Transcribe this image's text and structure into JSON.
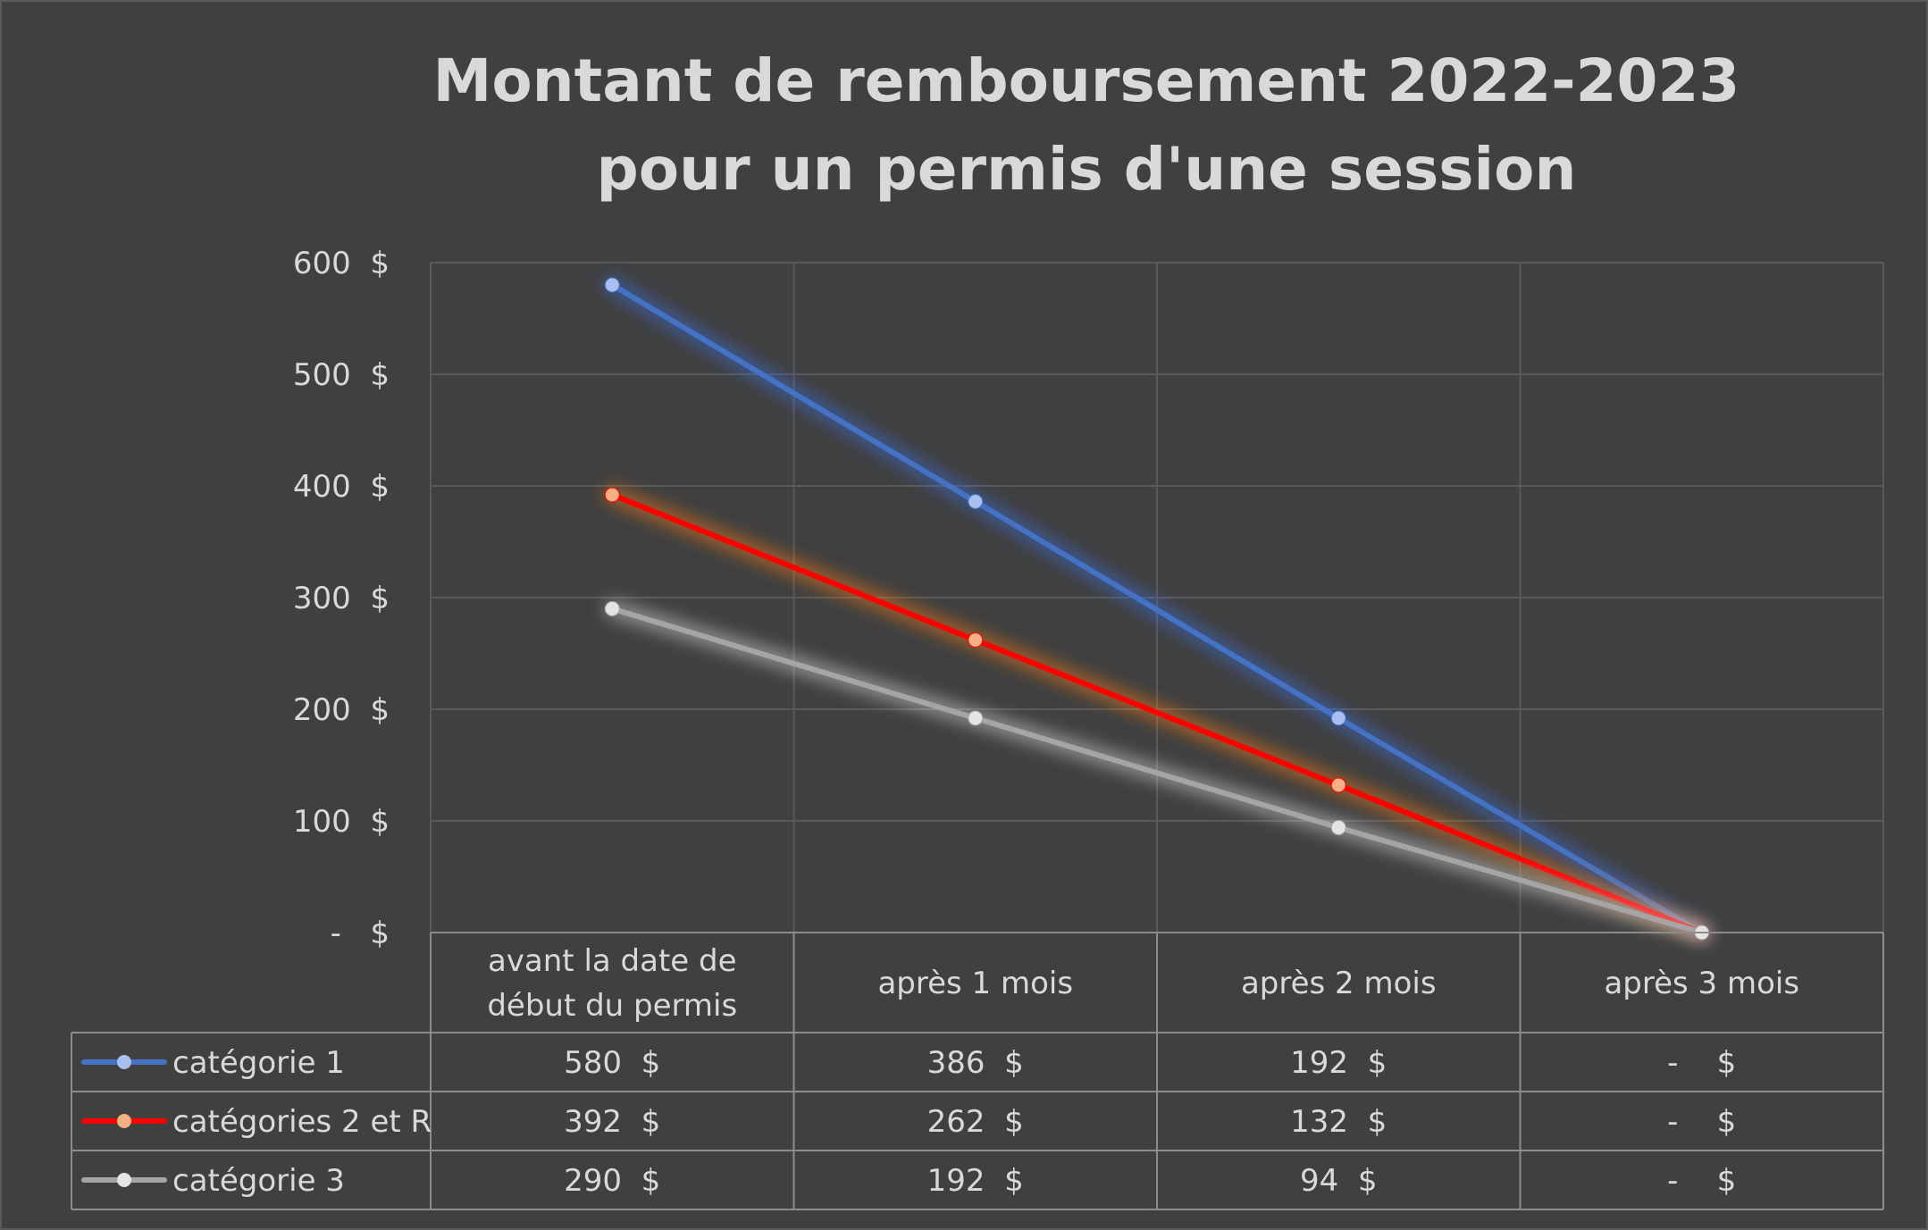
{
  "chart_data": {
    "type": "line",
    "title": [
      "Montant de remboursement 2022-2023",
      "pour un permis d'une session"
    ],
    "categories": [
      [
        "avant la date de",
        "début du permis"
      ],
      [
        "après 1 mois"
      ],
      [
        "après 2 mois"
      ],
      [
        "après 3 mois"
      ]
    ],
    "ylim": [
      0,
      600
    ],
    "yticks": [
      {
        "value": 0,
        "label": "-   $"
      },
      {
        "value": 100,
        "label": "100  $"
      },
      {
        "value": 200,
        "label": "200  $"
      },
      {
        "value": 300,
        "label": "300  $"
      },
      {
        "value": 400,
        "label": "400  $"
      },
      {
        "value": 500,
        "label": "500  $"
      },
      {
        "value": 600,
        "label": "600  $"
      }
    ],
    "grid": true,
    "legend": "data-table",
    "series": [
      {
        "name": "catégorie 1",
        "color": "#4472c4",
        "marker": "#a9bff0",
        "glow": "#3a6fe0",
        "values": [
          580,
          386,
          192,
          0
        ],
        "labels": [
          "580  $",
          "386  $",
          "192  $",
          "-    $"
        ]
      },
      {
        "name": "catégories 2 et R",
        "color": "#ff0000",
        "marker": "#f4b183",
        "glow": "#ff7a1a",
        "values": [
          392,
          262,
          132,
          0
        ],
        "labels": [
          "392  $",
          "262  $",
          "132  $",
          "-    $"
        ]
      },
      {
        "name": "catégorie 3",
        "color": "#a5a5a5",
        "marker": "#e4e4e4",
        "glow": "#d9d9d9",
        "values": [
          290,
          192,
          94,
          0
        ],
        "labels": [
          "290  $",
          "192  $",
          "94  $",
          "-    $"
        ]
      }
    ]
  }
}
